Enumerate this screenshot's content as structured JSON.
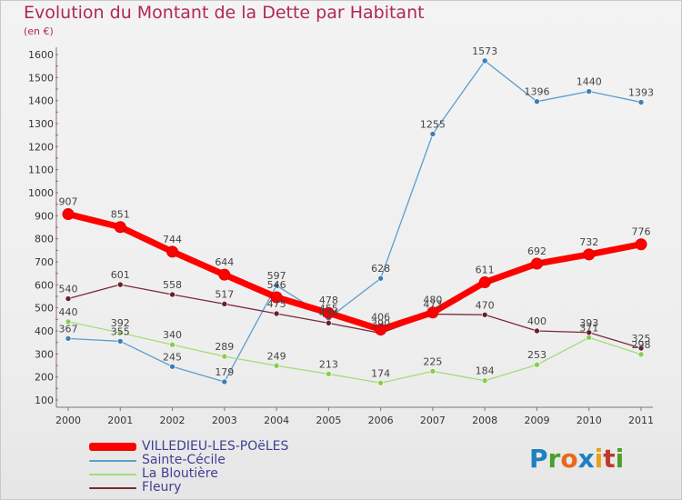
{
  "title": "Evolution du Montant de la Dette par Habitant",
  "unit": "(en €)",
  "logo": {
    "letters": [
      "P",
      "r",
      "o",
      "x",
      "i",
      "t",
      "i"
    ],
    "colors": [
      "#1f7fc0",
      "#4aa02c",
      "#e8691a",
      "#1f7fc0",
      "#e8a21a",
      "#c0392b",
      "#4aa02c"
    ]
  },
  "chart_data": {
    "type": "line",
    "x": [
      "2000",
      "2001",
      "2002",
      "2003",
      "2004",
      "2005",
      "2006",
      "2007",
      "2008",
      "2009",
      "2010",
      "2011"
    ],
    "ylim": [
      100,
      1600
    ],
    "yticks": [
      100,
      200,
      300,
      400,
      500,
      600,
      700,
      800,
      900,
      1000,
      1100,
      1200,
      1300,
      1400,
      1500,
      1600
    ],
    "grid": false,
    "legend_position": "bottom-left",
    "series": [
      {
        "name": "Sainte-Cécile",
        "color": "#5a9fd0",
        "marker": "#3a7fb8",
        "values": [
          367,
          355,
          245,
          179,
          597,
          455,
          628,
          1255,
          1573,
          1396,
          1440,
          1393
        ],
        "labels": [
          "367",
          "355",
          "245",
          "179",
          "597",
          "455",
          "628",
          "1255",
          "1573",
          "1396",
          "1440",
          "1393"
        ]
      },
      {
        "name": "La Bloutière",
        "color": "#a3dc7a",
        "marker": "#8acc4e",
        "values": [
          440,
          392,
          340,
          289,
          249,
          213,
          174,
          225,
          184,
          253,
          371,
          298
        ],
        "labels": [
          "440",
          "392",
          "340",
          "289",
          "249",
          "213",
          "174",
          "225",
          "184",
          "253",
          "371",
          "298"
        ]
      },
      {
        "name": "Fleury",
        "color": "#7a2a36",
        "marker": "#6a1e2c",
        "values": [
          540,
          601,
          558,
          517,
          475,
          434,
          390,
          473,
          470,
          400,
          393,
          325
        ],
        "labels": [
          "540",
          "601",
          "558",
          "517",
          "475",
          "434",
          "390",
          "473",
          "470",
          "400",
          "393",
          "325"
        ]
      },
      {
        "name": "VILLEDIEU-LES-POëLES",
        "color": "#ff0000",
        "marker": "#ff0000",
        "thick": true,
        "values": [
          907,
          851,
          744,
          644,
          546,
          478,
          406,
          480,
          611,
          692,
          732,
          776
        ],
        "labels": [
          "907",
          "851",
          "744",
          "644",
          "546",
          "478",
          "406",
          "480",
          "611",
          "692",
          "732",
          "776"
        ]
      }
    ],
    "legend_order": [
      "VILLEDIEU-LES-POëLES",
      "Sainte-Cécile",
      "La Bloutière",
      "Fleury"
    ]
  }
}
